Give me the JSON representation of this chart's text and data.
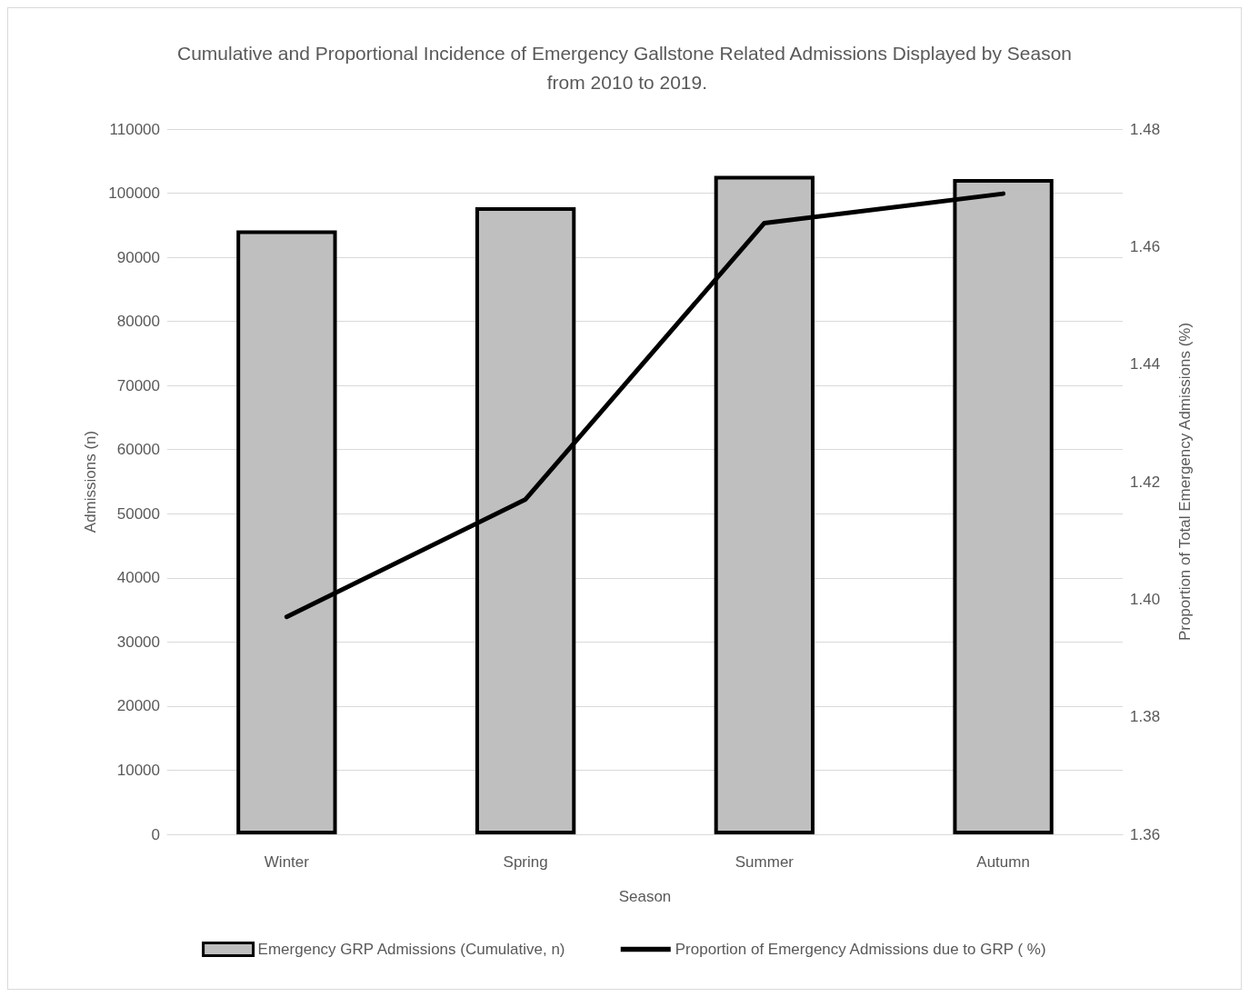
{
  "chart_data": {
    "type": "bar",
    "title": "Cumulative and Proportional Incidence of Emergency Gallstone Related Admissions Displayed by Season from 2010 to 2019.",
    "xlabel": "Season",
    "ylabel": "Admissions (n)",
    "y2label": "Proportion of Total Emergency Admissions (%)",
    "categories": [
      "Winter",
      "Spring",
      "Summer",
      "Autumn"
    ],
    "series": [
      {
        "name": "Emergency GRP Admissions (Cumulative, n)",
        "color": "#bfbfbf",
        "values": [
          94200,
          97800,
          102700,
          102200
        ]
      },
      {
        "name": "Proportion of Emergency Admissions due to GRP ( %)",
        "type": "line",
        "axis": "y2",
        "color": "#000000",
        "values": [
          1.397,
          1.417,
          1.464,
          1.469
        ]
      }
    ],
    "ylim": [
      0,
      110000
    ],
    "yticks": [
      0,
      10000,
      20000,
      30000,
      40000,
      50000,
      60000,
      70000,
      80000,
      90000,
      100000,
      110000
    ],
    "y2lim": [
      1.36,
      1.48
    ],
    "y2ticks": [
      {
        "value": 1.36,
        "label": "1.36"
      },
      {
        "value": 1.38,
        "label": "1.38"
      },
      {
        "value": 1.4,
        "label": "1.40"
      },
      {
        "value": 1.42,
        "label": "1.42"
      },
      {
        "value": 1.44,
        "label": "1.44"
      },
      {
        "value": 1.46,
        "label": "1.46"
      },
      {
        "value": 1.48,
        "label": "1.48"
      }
    ],
    "grid": "y",
    "legend": "bottom",
    "marker": "none",
    "line_style": "solid"
  }
}
